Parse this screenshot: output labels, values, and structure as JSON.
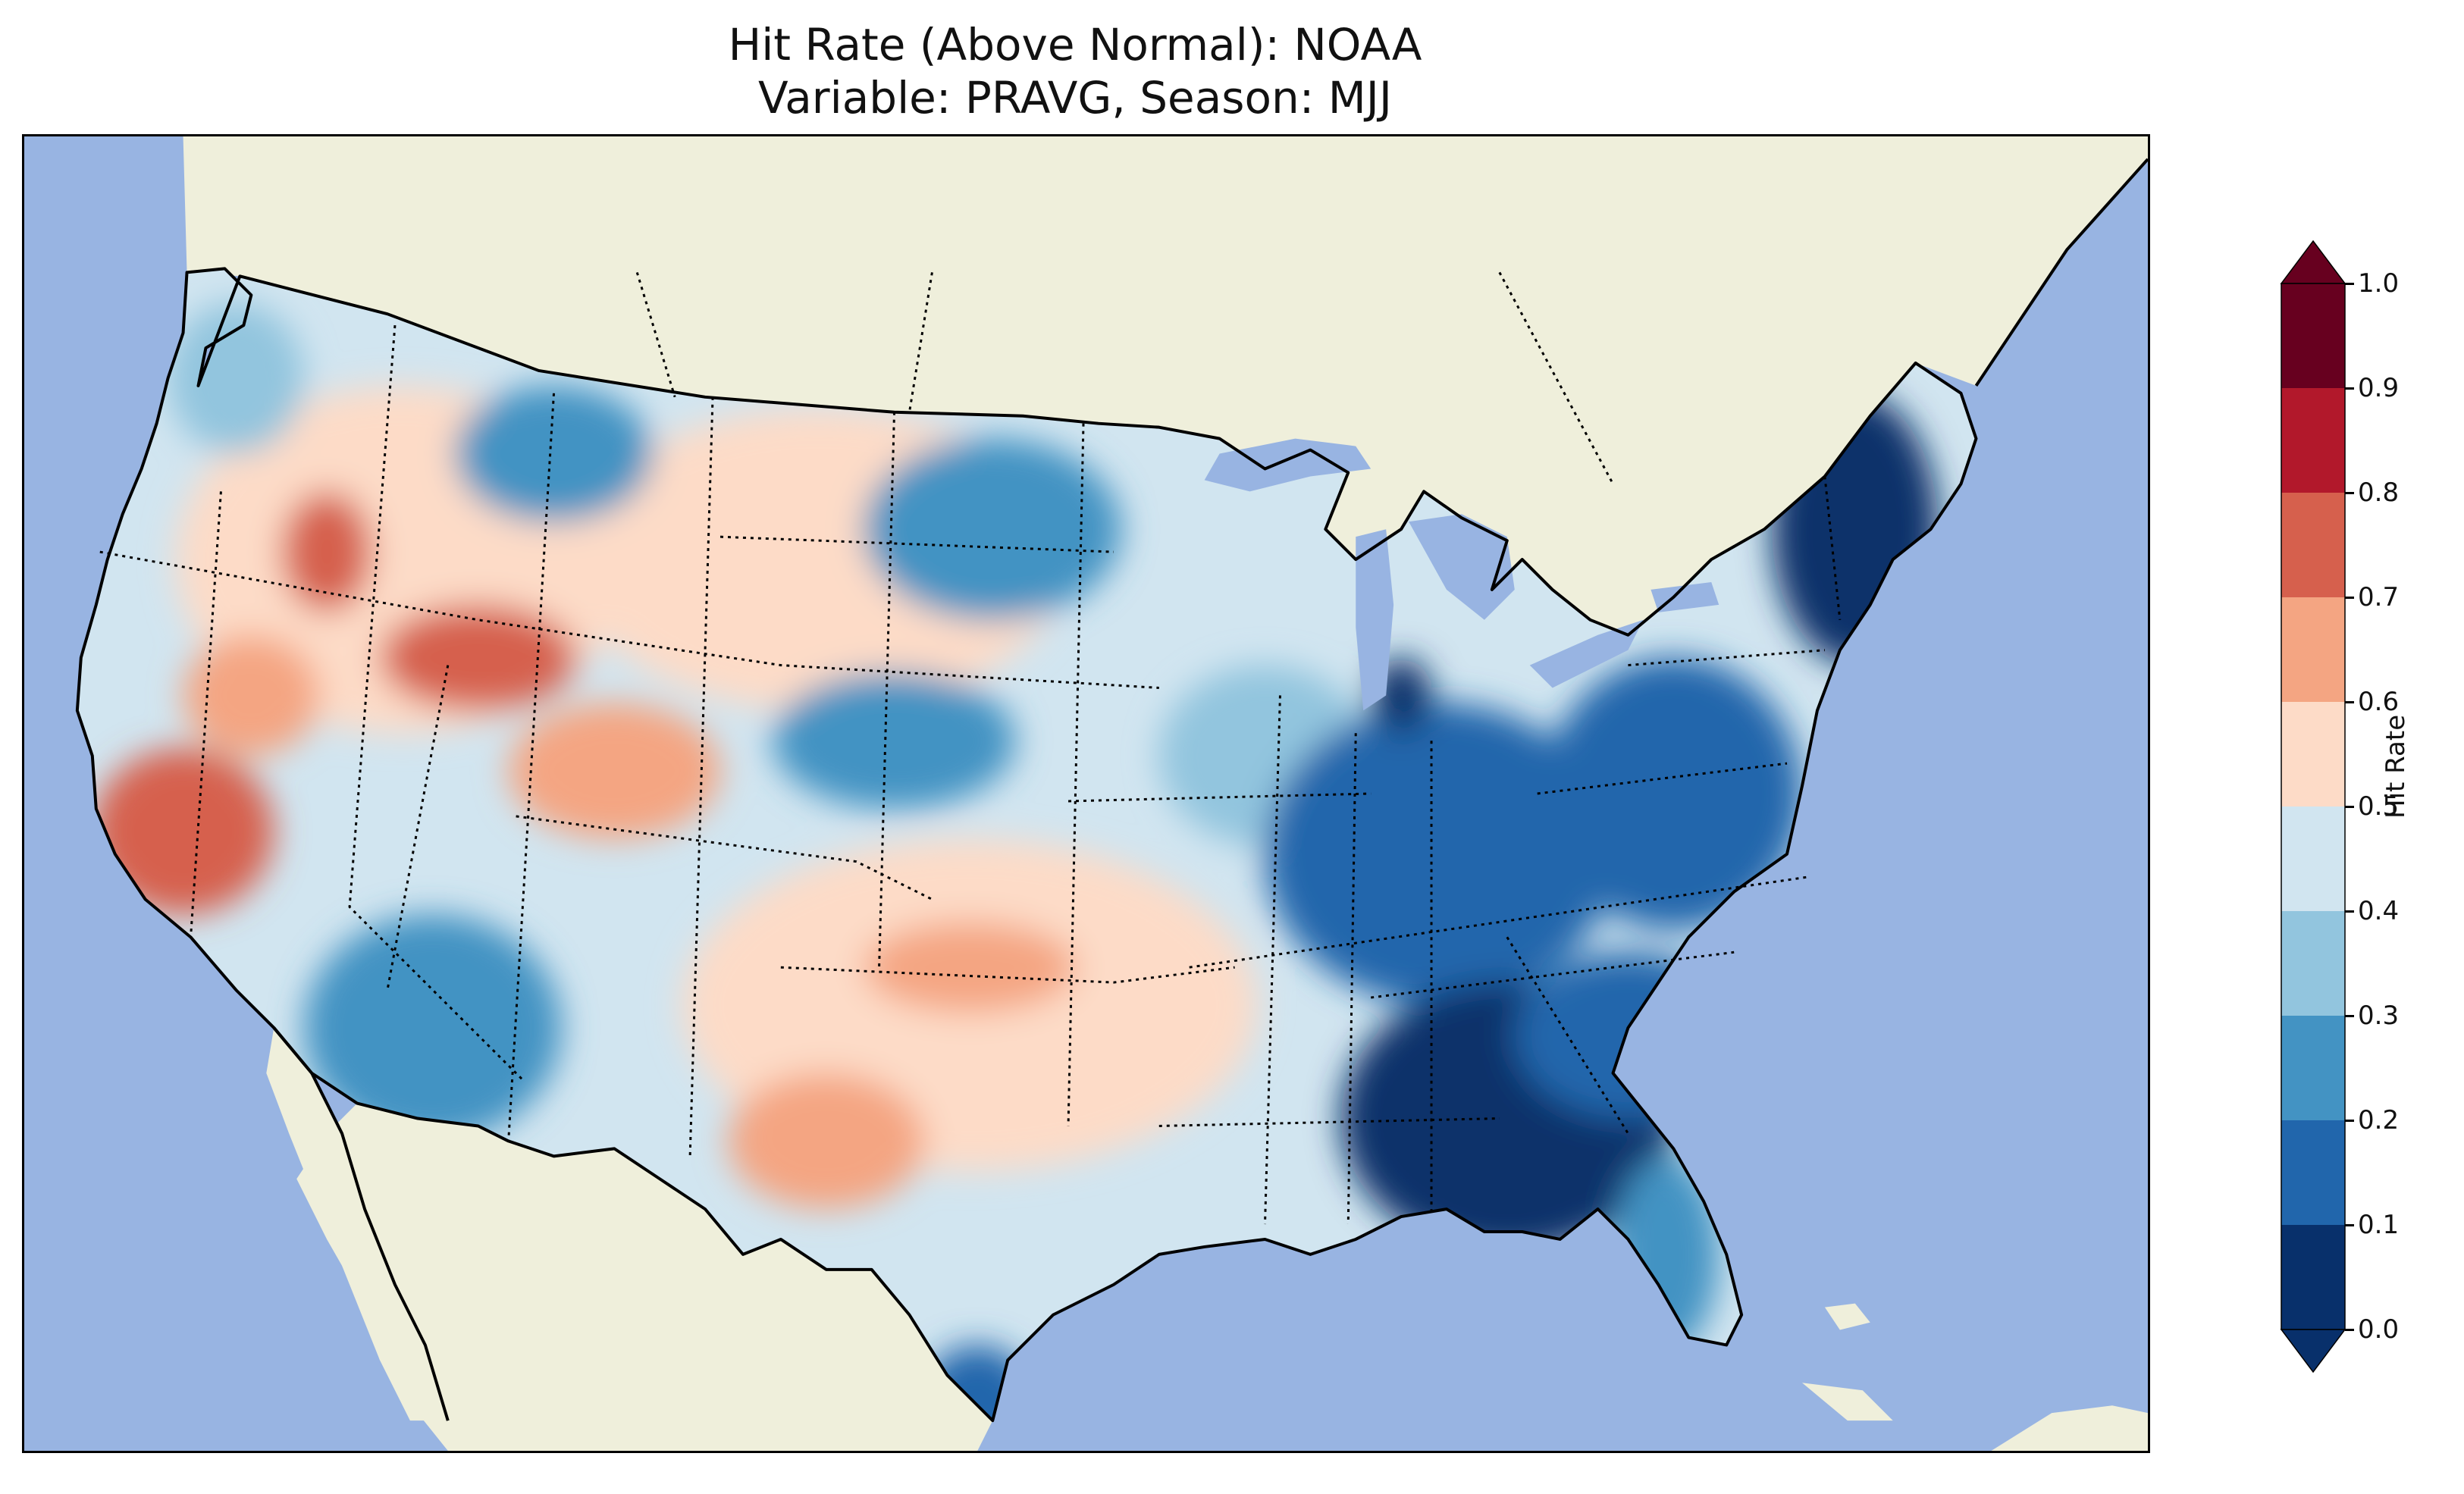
{
  "title": {
    "line1": "Hit Rate (Above Normal): NOAA",
    "line2": "Variable: PRAVG, Season: MJJ"
  },
  "colors": {
    "ocean": "#98b4e2",
    "land": "#efefdb",
    "coast": "#000000"
  },
  "colorbar": {
    "label": "Hit Rate",
    "ticks": [
      "0.0",
      "0.1",
      "0.2",
      "0.3",
      "0.4",
      "0.5",
      "0.6",
      "0.7",
      "0.8",
      "0.9",
      "1.0"
    ],
    "bin_colors": [
      "#08306b",
      "#2166ac",
      "#4393c3",
      "#92c5de",
      "#d1e5f0",
      "#fddbc7",
      "#f4a582",
      "#d6604d",
      "#b2182b",
      "#67001f"
    ],
    "under_color": "#08306b",
    "over_color": "#67001f"
  },
  "map_data": {
    "region": "Contiguous United States",
    "value_range": [
      0.0,
      1.0
    ],
    "description_regions": [
      {
        "area": "Northeast / New England",
        "hit_rate": 0.1
      },
      {
        "area": "Southeast (Alabama / Georgia / Florida panhandle)",
        "hit_rate": 0.1
      },
      {
        "area": "Ohio Valley / Mid-Atlantic",
        "hit_rate": 0.2
      },
      {
        "area": "Upper Midwest",
        "hit_rate": 0.3
      },
      {
        "area": "Southwest (Arizona)",
        "hit_rate": 0.3
      },
      {
        "area": "Great Plains / Texas",
        "hit_rate": 0.5
      },
      {
        "area": "Central California",
        "hit_rate": 0.7
      },
      {
        "area": "Idaho / Northern Utah",
        "hit_rate": 0.75
      }
    ]
  }
}
